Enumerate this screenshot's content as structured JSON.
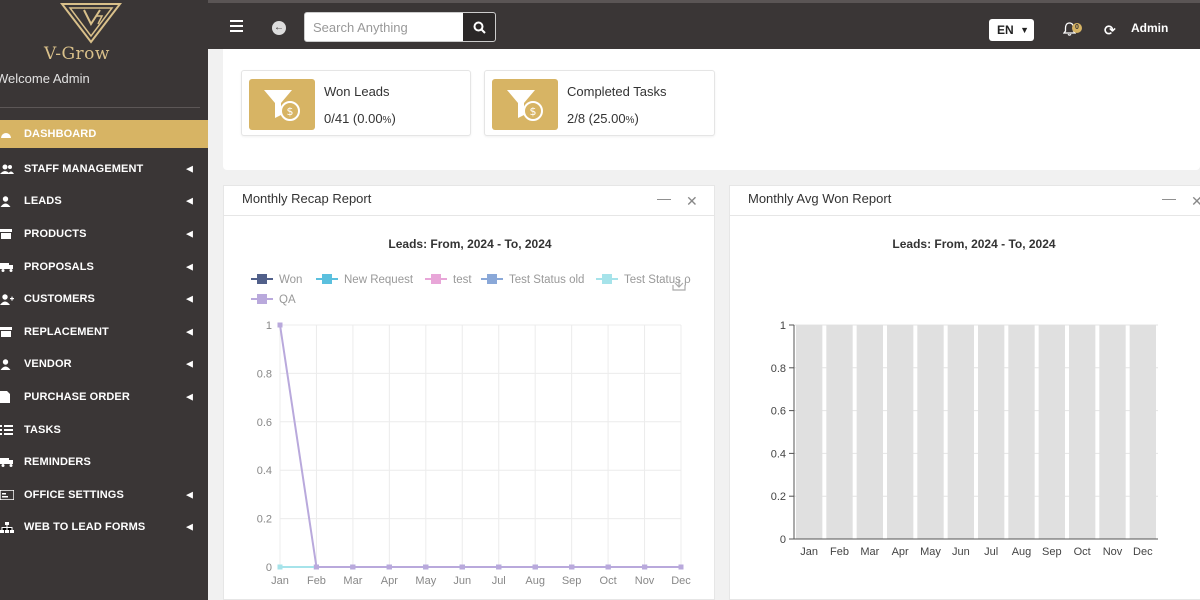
{
  "brand": {
    "name": "V-Grow",
    "logo_color": "#d9c08a"
  },
  "sidebar": {
    "welcome": "Welcome Admin",
    "items": [
      {
        "label": "DASHBOARD",
        "icon": "dashboard-icon",
        "active": true,
        "has_caret": false
      },
      {
        "label": "STAFF MANAGEMENT",
        "icon": "users-icon",
        "active": false,
        "has_caret": true
      },
      {
        "label": "LEADS",
        "icon": "user-icon",
        "active": false,
        "has_caret": true
      },
      {
        "label": "PRODUCTS",
        "icon": "box-icon",
        "active": false,
        "has_caret": true
      },
      {
        "label": "PROPOSALS",
        "icon": "truck-icon",
        "active": false,
        "has_caret": true
      },
      {
        "label": "CUSTOMERS",
        "icon": "user-plus-icon",
        "active": false,
        "has_caret": true
      },
      {
        "label": "REPLACEMENT",
        "icon": "box-icon",
        "active": false,
        "has_caret": true
      },
      {
        "label": "VENDOR",
        "icon": "user-icon",
        "active": false,
        "has_caret": true
      },
      {
        "label": "PURCHASE ORDER",
        "icon": "file-icon",
        "active": false,
        "has_caret": true
      },
      {
        "label": "TASKS",
        "icon": "list-icon",
        "active": false,
        "has_caret": false
      },
      {
        "label": "REMINDERS",
        "icon": "truck-icon",
        "active": false,
        "has_caret": false
      },
      {
        "label": "OFFICE SETTINGS",
        "icon": "settings-card-icon",
        "active": false,
        "has_caret": true
      },
      {
        "label": "WEB TO LEAD FORMS",
        "icon": "sitemap-icon",
        "active": false,
        "has_caret": true
      }
    ]
  },
  "topbar": {
    "search_placeholder": "Search Anything",
    "language": "EN",
    "notification_count": "0",
    "user": "Admin"
  },
  "stats": [
    {
      "title": "Won Leads",
      "value": "0/41 (0.00",
      "unit": "%",
      "close": ")"
    },
    {
      "title": "Completed Tasks",
      "value": "2/8 (25.00",
      "unit": "%",
      "close": ")"
    }
  ],
  "colors": {
    "accent": "#d7b464",
    "sidebar_bg": "#3a3636"
  },
  "panels": {
    "recap": {
      "title": "Monthly Recap Report",
      "min": "—",
      "close": "✕"
    },
    "avg": {
      "title": "Monthly Avg Won Report",
      "min": "—",
      "close": "✕"
    }
  },
  "chart_data": [
    {
      "type": "line",
      "title": "Leads: From, 2024 - To, 2024",
      "x": [
        "Jan",
        "Feb",
        "Mar",
        "Apr",
        "May",
        "Jun",
        "Jul",
        "Aug",
        "Sep",
        "Oct",
        "Nov",
        "Dec"
      ],
      "ylim": [
        0,
        1
      ],
      "yticks": [
        "0",
        "0.2",
        "0.4",
        "0.6",
        "0.8",
        "1"
      ],
      "grid": true,
      "legend_position": "top",
      "series": [
        {
          "name": "Won",
          "color": "#51608a",
          "values": [
            0,
            0,
            0,
            0,
            0,
            0,
            0,
            0,
            0,
            0,
            0,
            0
          ]
        },
        {
          "name": "New Request",
          "color": "#5bc0de",
          "values": [
            0,
            0,
            0,
            0,
            0,
            0,
            0,
            0,
            0,
            0,
            0,
            0
          ]
        },
        {
          "name": "test",
          "color": "#e8a6d8",
          "values": [
            0,
            0,
            0,
            0,
            0,
            0,
            0,
            0,
            0,
            0,
            0,
            0
          ]
        },
        {
          "name": "Test Status old",
          "color": "#8aa8d8",
          "values": [
            0,
            0,
            0,
            0,
            0,
            0,
            0,
            0,
            0,
            0,
            0,
            0
          ]
        },
        {
          "name": "Test Status ρ",
          "color": "#a6e3ea",
          "values": [
            0,
            0,
            0,
            0,
            0,
            0,
            0,
            0,
            0,
            0,
            0,
            0
          ]
        },
        {
          "name": "QA",
          "color": "#b9a9dc",
          "values": [
            1,
            0,
            0,
            0,
            0,
            0,
            0,
            0,
            0,
            0,
            0,
            0
          ]
        }
      ]
    },
    {
      "type": "bar",
      "title": "Leads: From, 2024 - To, 2024",
      "categories": [
        "Jan",
        "Feb",
        "Mar",
        "Apr",
        "May",
        "Jun",
        "Jul",
        "Aug",
        "Sep",
        "Oct",
        "Nov",
        "Dec"
      ],
      "ylim": [
        0,
        1
      ],
      "yticks": [
        "0",
        "0.2",
        "0.4",
        "0.6",
        "0.8",
        "1"
      ],
      "grid": true,
      "bar_color": "#e0e0e0",
      "values": [
        1,
        1,
        1,
        1,
        1,
        1,
        1,
        1,
        1,
        1,
        1,
        1
      ]
    }
  ]
}
